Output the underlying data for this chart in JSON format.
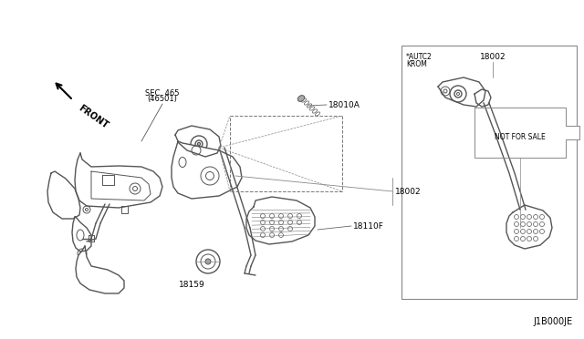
{
  "bg_color": "#ffffff",
  "line_color": "#555555",
  "fig_width": 6.4,
  "fig_height": 3.72,
  "dpi": 100,
  "labels": {
    "front_text": "FRONT",
    "sec465_line1": "SEC. 465",
    "sec465_line2": "(46501)",
    "part_18010A": "18010A",
    "part_18002": "18002",
    "part_18110F": "18110F",
    "part_18159": "18159",
    "autc2": "*AUTC2",
    "krom": "KROM",
    "not_for_sale": "NOT FOR SALE",
    "diagram_ref": "J1B000JE"
  }
}
